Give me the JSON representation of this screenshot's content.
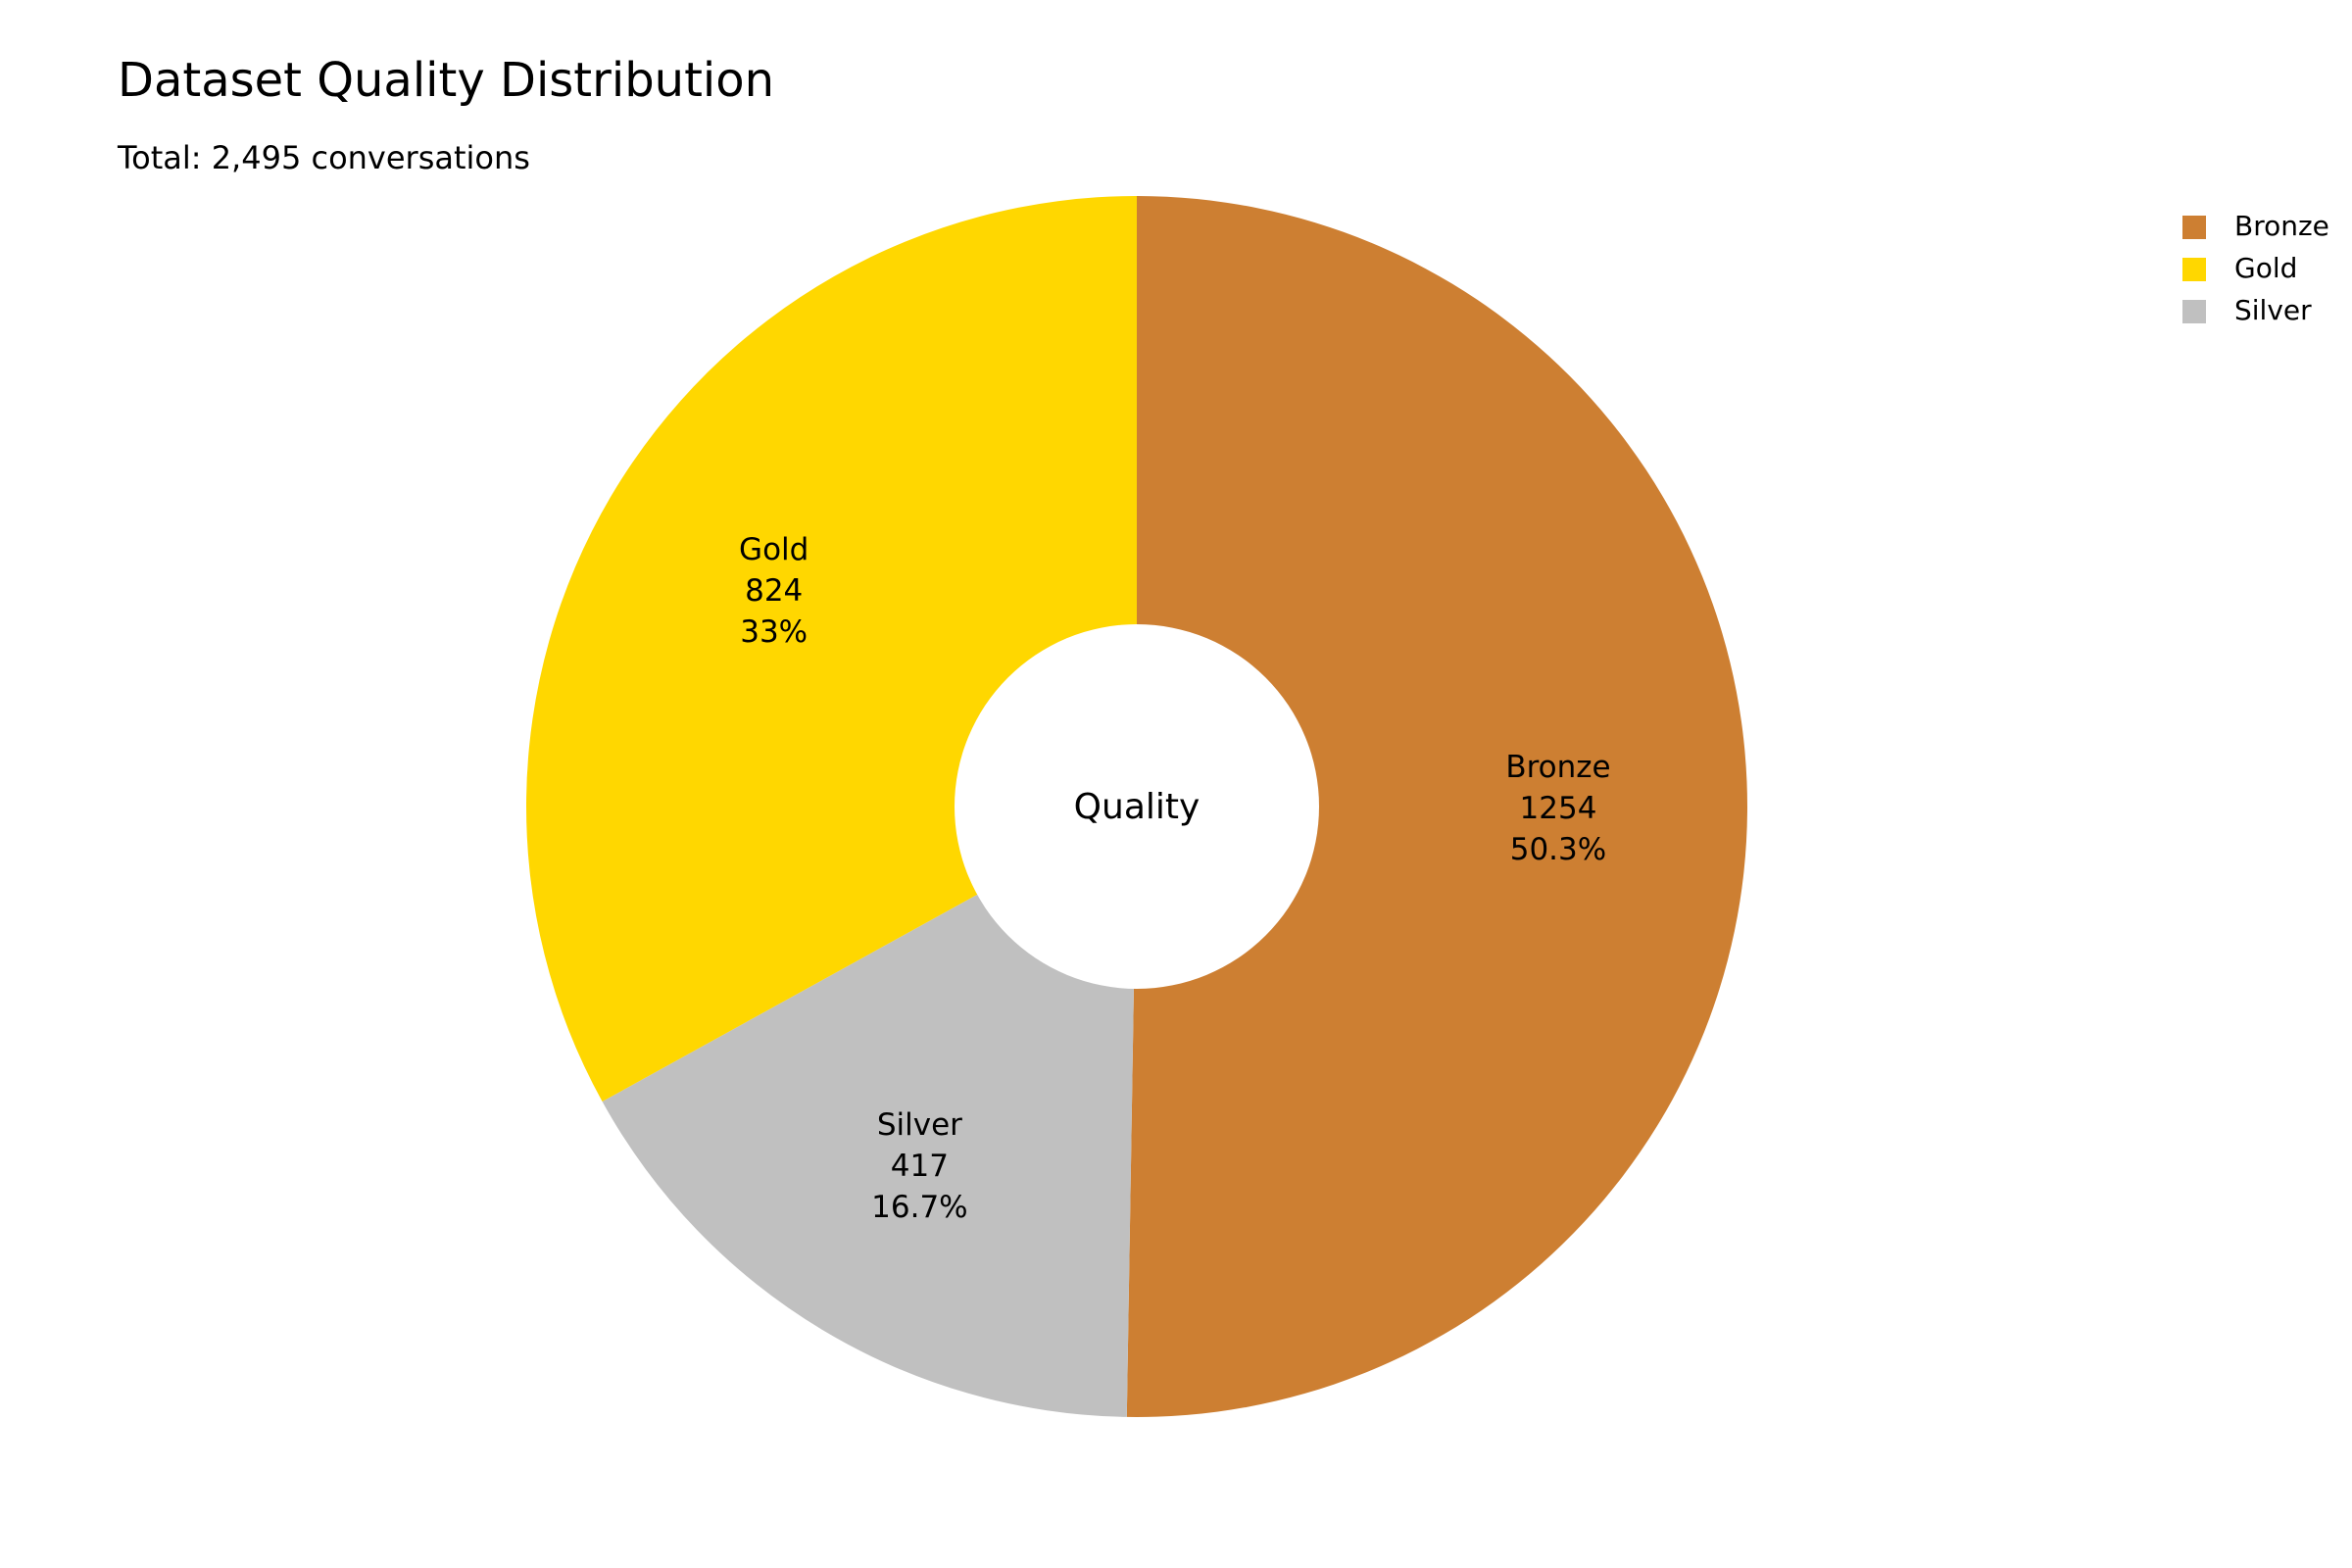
{
  "chart_data": {
    "type": "pie",
    "title": "Dataset Quality Distribution",
    "subtitle": "Total: 2,495 conversations",
    "center_label": "Quality",
    "hole": true,
    "direction": "clockwise",
    "legend_position": "top-right",
    "slices": [
      {
        "label": "Bronze",
        "value": 1254,
        "percent_label": "50.3%",
        "color": "#CD7F32"
      },
      {
        "label": "Silver",
        "value": 417,
        "percent_label": "16.7%",
        "color": "#C0C0C0"
      },
      {
        "label": "Gold",
        "value": 824,
        "percent_label": "33%",
        "color": "#FFD700"
      }
    ],
    "legend": [
      {
        "label": "Bronze",
        "color": "#CD7F32"
      },
      {
        "label": "Gold",
        "color": "#FFD700"
      },
      {
        "label": "Silver",
        "color": "#C0C0C0"
      }
    ]
  }
}
